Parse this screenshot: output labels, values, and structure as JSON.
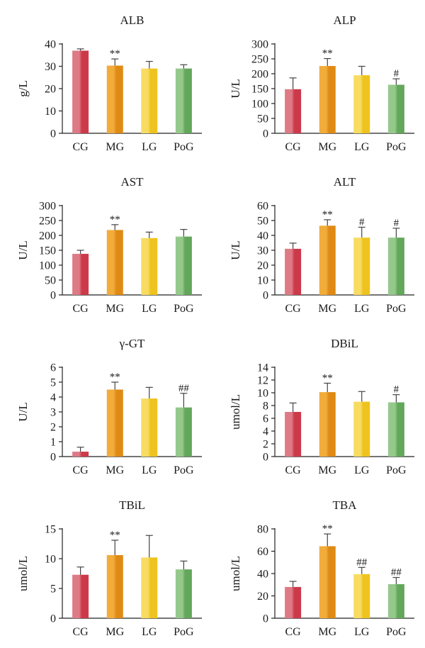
{
  "chart_data": [
    {
      "type": "bar",
      "title": "ALB",
      "ylabel": "g/L",
      "ylim": [
        0,
        40
      ],
      "yticks": [
        0,
        10,
        20,
        30,
        40
      ],
      "categories": [
        "CG",
        "MG",
        "LG",
        "PoG"
      ],
      "values": [
        37,
        30.3,
        29,
        29
      ],
      "errors": [
        0.8,
        3,
        3.2,
        1.7
      ],
      "annotations": [
        "",
        "**",
        "",
        ""
      ]
    },
    {
      "type": "bar",
      "title": "ALP",
      "ylabel": "U/L",
      "ylim": [
        0,
        300
      ],
      "yticks": [
        0,
        50,
        100,
        150,
        200,
        250,
        300
      ],
      "categories": [
        "CG",
        "MG",
        "LG",
        "PoG"
      ],
      "values": [
        148,
        226,
        195,
        163
      ],
      "errors": [
        38,
        25,
        30,
        20
      ],
      "annotations": [
        "",
        "**",
        "",
        "#"
      ]
    },
    {
      "type": "bar",
      "title": "AST",
      "ylabel": "U/L",
      "ylim": [
        0,
        300
      ],
      "yticks": [
        0,
        50,
        100,
        150,
        200,
        250,
        300
      ],
      "categories": [
        "CG",
        "MG",
        "LG",
        "PoG"
      ],
      "values": [
        138,
        218,
        191,
        196
      ],
      "errors": [
        12,
        18,
        20,
        24
      ],
      "annotations": [
        "",
        "**",
        "",
        ""
      ]
    },
    {
      "type": "bar",
      "title": "ALT",
      "ylabel": "U/L",
      "ylim": [
        0,
        60
      ],
      "yticks": [
        0,
        10,
        20,
        30,
        40,
        50,
        60
      ],
      "categories": [
        "CG",
        "MG",
        "LG",
        "PoG"
      ],
      "values": [
        31,
        46.5,
        38.5,
        38.5
      ],
      "errors": [
        3.8,
        4,
        7,
        6.3
      ],
      "annotations": [
        "",
        "**",
        "#",
        "#"
      ]
    },
    {
      "type": "bar",
      "title": "γ-GT",
      "ylabel": "U/L",
      "ylim": [
        0,
        6
      ],
      "yticks": [
        0,
        1,
        2,
        3,
        4,
        5,
        6
      ],
      "categories": [
        "CG",
        "MG",
        "LG",
        "PoG"
      ],
      "values": [
        0.33,
        4.5,
        3.9,
        3.3
      ],
      "errors": [
        0.3,
        0.5,
        0.75,
        0.95
      ],
      "annotations": [
        "",
        "**",
        "",
        "##"
      ]
    },
    {
      "type": "bar",
      "title": "DBiL",
      "ylabel": "umol/L",
      "ylim": [
        0,
        14
      ],
      "yticks": [
        0,
        2,
        4,
        6,
        8,
        10,
        12,
        14
      ],
      "categories": [
        "CG",
        "MG",
        "LG",
        "PoG"
      ],
      "values": [
        7,
        10.1,
        8.6,
        8.5
      ],
      "errors": [
        1.4,
        1.4,
        1.6,
        1.2
      ],
      "annotations": [
        "",
        "**",
        "",
        "#"
      ]
    },
    {
      "type": "bar",
      "title": "TBiL",
      "ylabel": "umol/L",
      "ylim": [
        0,
        15
      ],
      "yticks": [
        0,
        5,
        10,
        15
      ],
      "categories": [
        "CG",
        "MG",
        "LG",
        "PoG"
      ],
      "values": [
        7.3,
        10.6,
        10.2,
        8.2
      ],
      "errors": [
        1.3,
        2.5,
        3.7,
        1.4
      ],
      "annotations": [
        "",
        "**",
        "",
        ""
      ]
    },
    {
      "type": "bar",
      "title": "TBA",
      "ylabel": "umol/L",
      "ylim": [
        0,
        80
      ],
      "yticks": [
        0,
        20,
        40,
        60,
        80
      ],
      "categories": [
        "CG",
        "MG",
        "LG",
        "PoG"
      ],
      "values": [
        28,
        64.5,
        39.5,
        30.5
      ],
      "errors": [
        5,
        11,
        6,
        6
      ],
      "annotations": [
        "",
        "**",
        "##",
        "##"
      ]
    }
  ],
  "colors": {
    "CG": [
      "#de7a86",
      "#cc3a4a"
    ],
    "MG": [
      "#f2ac3c",
      "#df8a14"
    ],
    "LG": [
      "#f8dc62",
      "#efc31f"
    ],
    "PoG": [
      "#95c98c",
      "#63a75a"
    ]
  }
}
